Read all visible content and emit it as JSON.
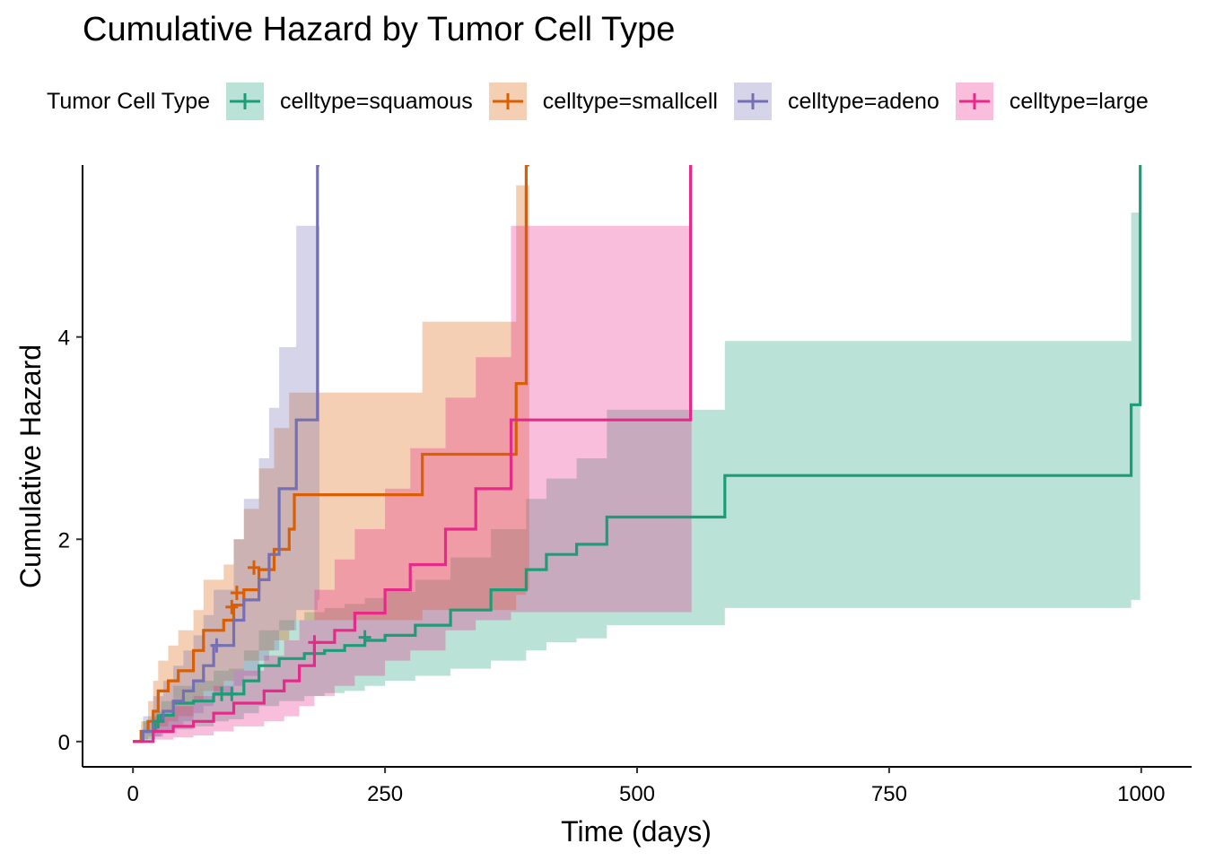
{
  "chart_data": {
    "type": "line",
    "title": "Cumulative Hazard by Tumor Cell Type",
    "xlabel": "Time (days)",
    "ylabel": "Cumulative Hazard",
    "xlim": [
      -50,
      1050
    ],
    "ylim": [
      -0.25,
      5.7
    ],
    "xticks": [
      0,
      250,
      500,
      750,
      1000
    ],
    "yticks": [
      0,
      2,
      4
    ],
    "xtick_labels": [
      "0",
      "250",
      "500",
      "750",
      "1000"
    ],
    "ytick_labels": [
      "0",
      "2",
      "4"
    ],
    "grid": false,
    "legend": {
      "title": "Tumor Cell Type",
      "position": "top"
    },
    "series": [
      {
        "name": "celltype=squamous",
        "color": "#1B9E77",
        "x": [
          0,
          10,
          22,
          28,
          40,
          60,
          80,
          95,
          110,
          125,
          145,
          170,
          190,
          210,
          230,
          250,
          280,
          315,
          355,
          390,
          410,
          440,
          470,
          587,
          990,
          999
        ],
        "y": [
          0,
          0.1,
          0.2,
          0.26,
          0.38,
          0.4,
          0.47,
          0.47,
          0.6,
          0.75,
          0.82,
          0.87,
          0.9,
          0.95,
          1.0,
          1.05,
          1.15,
          1.3,
          1.5,
          1.7,
          1.85,
          1.95,
          2.22,
          2.63,
          3.33,
          5.7
        ],
        "lower": [
          0,
          0.02,
          0.05,
          0.08,
          0.12,
          0.15,
          0.2,
          0.22,
          0.28,
          0.35,
          0.4,
          0.45,
          0.48,
          0.5,
          0.55,
          0.6,
          0.65,
          0.72,
          0.8,
          0.9,
          0.98,
          1.02,
          1.15,
          1.32,
          1.4,
          1.4
        ],
        "upper": [
          0,
          0.2,
          0.3,
          0.4,
          0.55,
          0.6,
          0.7,
          0.72,
          0.9,
          1.1,
          1.2,
          1.28,
          1.32,
          1.36,
          1.42,
          1.48,
          1.6,
          1.82,
          2.1,
          2.4,
          2.6,
          2.8,
          3.28,
          3.96,
          5.23,
          5.23
        ]
      },
      {
        "name": "celltype=smallcell",
        "color": "#D95F02",
        "x": [
          0,
          8,
          15,
          20,
          25,
          35,
          45,
          60,
          70,
          90,
          100,
          110,
          125,
          140,
          155,
          160,
          287,
          380,
          390,
          393
        ],
        "y": [
          0,
          0.1,
          0.2,
          0.3,
          0.5,
          0.6,
          0.7,
          0.9,
          1.1,
          1.2,
          1.35,
          1.5,
          1.7,
          1.9,
          2.1,
          2.44,
          2.84,
          3.54,
          5.7,
          5.7
        ],
        "lower": [
          0,
          0.02,
          0.05,
          0.1,
          0.15,
          0.2,
          0.25,
          0.4,
          0.5,
          0.6,
          0.7,
          0.8,
          0.9,
          1.0,
          1.1,
          1.2,
          1.3,
          1.45,
          1.5,
          1.5
        ],
        "upper": [
          0,
          0.2,
          0.4,
          0.6,
          0.8,
          0.95,
          1.1,
          1.3,
          1.6,
          1.75,
          2.0,
          2.3,
          2.7,
          3.1,
          3.45,
          3.45,
          4.15,
          5.5,
          5.5,
          5.5
        ]
      },
      {
        "name": "celltype=adeno",
        "color": "#7570B3",
        "x": [
          0,
          10,
          20,
          30,
          40,
          50,
          60,
          70,
          80,
          100,
          110,
          125,
          135,
          145,
          162,
          183,
          185
        ],
        "y": [
          0,
          0.1,
          0.2,
          0.3,
          0.4,
          0.5,
          0.6,
          0.75,
          0.95,
          1.2,
          1.4,
          1.6,
          1.85,
          2.5,
          3.18,
          5.7,
          5.7
        ],
        "lower": [
          0,
          0.02,
          0.05,
          0.1,
          0.15,
          0.2,
          0.28,
          0.35,
          0.45,
          0.55,
          0.65,
          0.8,
          0.9,
          1.1,
          1.3,
          1.4,
          1.4
        ],
        "upper": [
          0,
          0.25,
          0.45,
          0.6,
          0.75,
          0.9,
          1.05,
          1.25,
          1.5,
          2.0,
          2.4,
          2.8,
          3.3,
          3.9,
          5.1,
          5.1,
          5.1
        ]
      },
      {
        "name": "celltype=large",
        "color": "#E7298A",
        "x": [
          0,
          20,
          40,
          60,
          80,
          100,
          130,
          150,
          165,
          180,
          200,
          220,
          250,
          275,
          310,
          340,
          375,
          553,
          554
        ],
        "y": [
          0,
          0.1,
          0.15,
          0.2,
          0.28,
          0.38,
          0.5,
          0.6,
          0.75,
          0.98,
          1.1,
          1.27,
          1.5,
          1.75,
          2.1,
          2.5,
          3.18,
          5.7,
          5.7
        ],
        "lower": [
          0,
          0.02,
          0.04,
          0.06,
          0.1,
          0.15,
          0.2,
          0.25,
          0.35,
          0.45,
          0.55,
          0.65,
          0.8,
          0.9,
          1.1,
          1.2,
          1.28,
          1.28,
          1.28
        ],
        "upper": [
          0,
          0.25,
          0.35,
          0.45,
          0.55,
          0.7,
          0.85,
          1.0,
          1.2,
          1.5,
          1.8,
          2.1,
          2.5,
          2.9,
          3.4,
          3.8,
          5.1,
          5.1,
          5.1
        ]
      }
    ],
    "censor_marks": {
      "celltype=squamous": [
        [
          25,
          0.2
        ],
        [
          88,
          0.47
        ],
        [
          98,
          0.47
        ],
        [
          230,
          1.03
        ]
      ],
      "celltype=smallcell": [
        [
          98,
          1.33
        ],
        [
          103,
          1.47
        ],
        [
          120,
          1.72
        ]
      ],
      "celltype=adeno": [
        [
          83,
          0.95
        ]
      ],
      "celltype=large": [
        [
          180,
          0.98
        ]
      ]
    }
  }
}
